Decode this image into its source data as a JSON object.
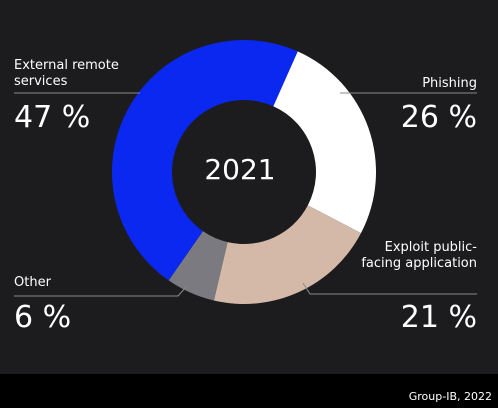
{
  "chart_data": {
    "type": "pie",
    "variant": "donut",
    "center_label": "2021",
    "slices": [
      {
        "label": "External remote services",
        "value": 47,
        "display": "47 %",
        "color": "#0a28f0"
      },
      {
        "label": "Phishing",
        "value": 26,
        "display": "26 %",
        "color": "#ffffff"
      },
      {
        "label": "Exploit public-facing application",
        "value": 21,
        "display": "21 %",
        "color": "#d4b8a8"
      },
      {
        "label": "Other",
        "value": 6,
        "display": "6 %",
        "color": "#7a7a80"
      }
    ]
  },
  "footer": {
    "source": "Group-IB, 2022"
  }
}
